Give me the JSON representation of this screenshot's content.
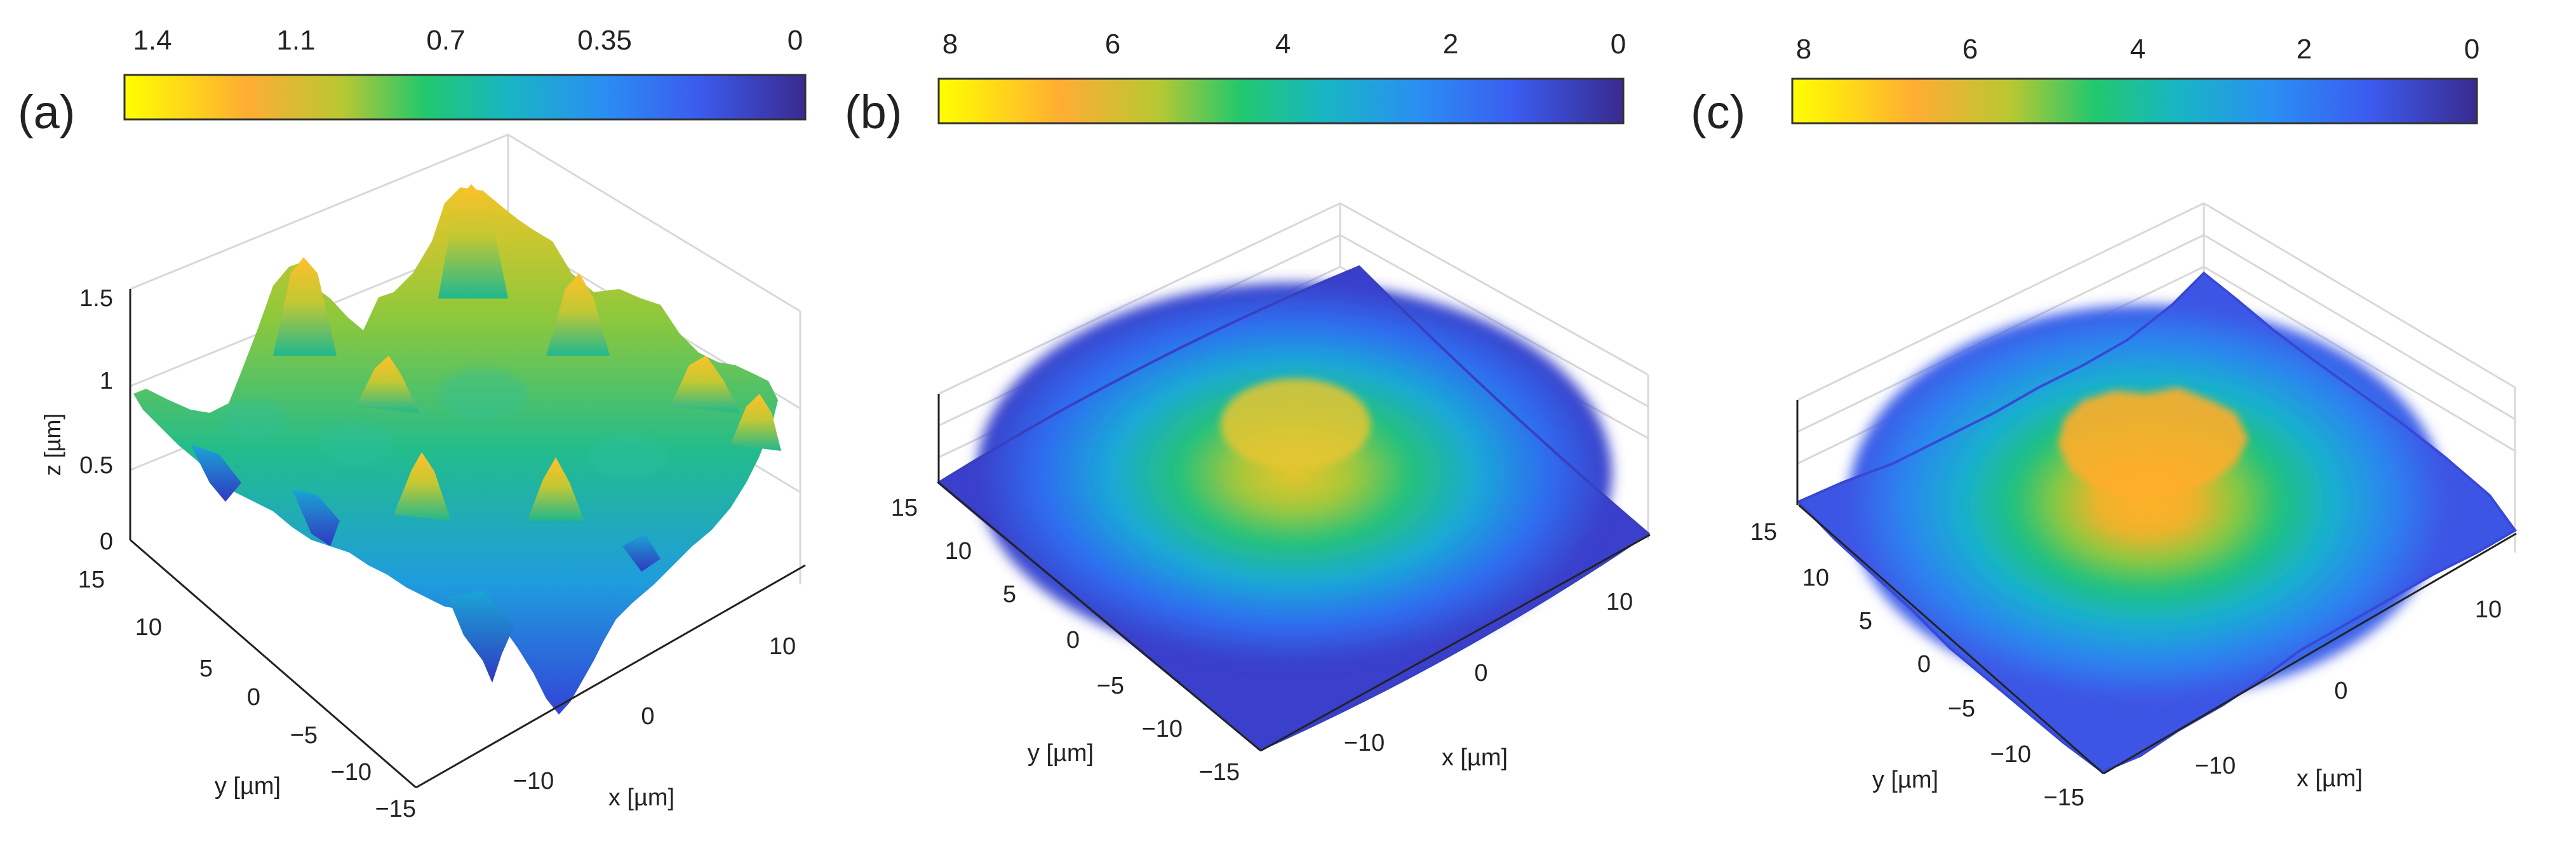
{
  "chart_data": [
    {
      "type": "surface3d",
      "panel_label": "(a)",
      "colorbar": {
        "ticks": [
          "1.4",
          "1.1",
          "0.7",
          "0.35",
          "0"
        ],
        "range": [
          0,
          1.5
        ],
        "reversed": true
      },
      "zaxis": {
        "label": "z [µm]",
        "ticks": [
          "1.5",
          "1",
          "0.5",
          "0"
        ],
        "range": [
          0,
          1.5
        ]
      },
      "xaxis": {
        "label": "x [µm]",
        "ticks": [
          "−10",
          "0",
          "10"
        ],
        "range": [
          -15,
          15
        ]
      },
      "yaxis": {
        "label": "y [µm]",
        "ticks": [
          "15",
          "10",
          "5",
          "0",
          "−5",
          "−10",
          "−15"
        ],
        "range": [
          -15,
          15
        ]
      },
      "surface": "rough random topography, peaks up to about 1.4 µm",
      "grid": true
    },
    {
      "type": "surface3d",
      "panel_label": "(b)",
      "colorbar": {
        "ticks": [
          "8",
          "6",
          "4",
          "2",
          "0"
        ],
        "range": [
          0,
          8
        ],
        "reversed": true
      },
      "xaxis": {
        "label": "x [µm]",
        "ticks": [
          "−10",
          "0",
          "10"
        ],
        "range": [
          -15,
          15
        ]
      },
      "yaxis": {
        "label": "y [µm]",
        "ticks": [
          "15",
          "10",
          "5",
          "0",
          "−5",
          "−10",
          "−15"
        ],
        "range": [
          -15,
          15
        ]
      },
      "surface": "smooth dome, maximum about 6 at the centre",
      "grid": true
    },
    {
      "type": "surface3d",
      "panel_label": "(c)",
      "colorbar": {
        "ticks": [
          "8",
          "6",
          "4",
          "2",
          "0"
        ],
        "range": [
          0,
          8
        ],
        "reversed": true
      },
      "xaxis": {
        "label": "x [µm]",
        "ticks": [
          "−10",
          "0",
          "10"
        ],
        "range": [
          -15,
          15
        ]
      },
      "yaxis": {
        "label": "y [µm]",
        "ticks": [
          "15",
          "10",
          "5",
          "0",
          "−5",
          "−10",
          "−15"
        ],
        "range": [
          -15,
          15
        ]
      },
      "surface": "rough dome, maximum about 6.5 at the centre",
      "grid": true
    }
  ],
  "colors": {
    "colormap": [
      "#ffff00",
      "#ffad33",
      "#b8c832",
      "#22c86c",
      "#17b6c2",
      "#2a8ff2",
      "#3b5cf0",
      "#3a2a8f"
    ],
    "axis": "#222222",
    "grid": "#d8d8d8"
  }
}
